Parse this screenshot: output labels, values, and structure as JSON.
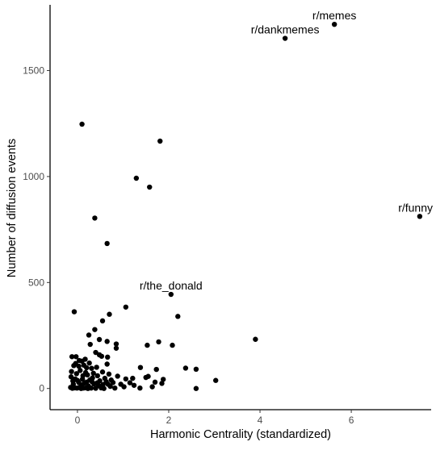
{
  "chart_data": {
    "type": "scatter",
    "title": "",
    "xlabel": "Harmonic Centrality (standardized)",
    "ylabel": "Number of diffusion events",
    "xlim": [
      -0.6,
      7.75
    ],
    "ylim": [
      -100,
      1810
    ],
    "x_ticks": [
      0,
      2,
      4,
      6
    ],
    "y_ticks": [
      0,
      500,
      1000,
      1500
    ],
    "grid": false,
    "point_color": "#000000",
    "points": [
      {
        "x": 5.63,
        "y": 1718
      },
      {
        "x": 4.55,
        "y": 1652
      },
      {
        "x": 7.5,
        "y": 812
      },
      {
        "x": 2.05,
        "y": 444
      },
      {
        "x": 0.1,
        "y": 1247
      },
      {
        "x": 1.81,
        "y": 1167
      },
      {
        "x": 1.29,
        "y": 992
      },
      {
        "x": 1.58,
        "y": 950
      },
      {
        "x": 0.38,
        "y": 804
      },
      {
        "x": 0.65,
        "y": 684
      },
      {
        "x": 1.06,
        "y": 384
      },
      {
        "x": -0.07,
        "y": 362
      },
      {
        "x": 0.7,
        "y": 350
      },
      {
        "x": 2.2,
        "y": 340
      },
      {
        "x": 0.55,
        "y": 319
      },
      {
        "x": 0.38,
        "y": 278
      },
      {
        "x": 0.25,
        "y": 252
      },
      {
        "x": 0.48,
        "y": 231
      },
      {
        "x": 0.65,
        "y": 222
      },
      {
        "x": 1.78,
        "y": 220
      },
      {
        "x": 3.9,
        "y": 232
      },
      {
        "x": 0.85,
        "y": 210
      },
      {
        "x": 0.28,
        "y": 208
      },
      {
        "x": 1.53,
        "y": 204
      },
      {
        "x": 2.08,
        "y": 204
      },
      {
        "x": 0.85,
        "y": 190
      },
      {
        "x": 0.4,
        "y": 170
      },
      {
        "x": 0.48,
        "y": 159
      },
      {
        "x": 0.53,
        "y": 152
      },
      {
        "x": -0.12,
        "y": 150
      },
      {
        "x": -0.03,
        "y": 150
      },
      {
        "x": 0.66,
        "y": 148
      },
      {
        "x": 0.1,
        "y": 129
      },
      {
        "x": 0.26,
        "y": 120
      },
      {
        "x": 0.65,
        "y": 115
      },
      {
        "x": -0.08,
        "y": 108
      },
      {
        "x": 0.03,
        "y": 105
      },
      {
        "x": 0.2,
        "y": 98
      },
      {
        "x": 0.31,
        "y": 95
      },
      {
        "x": 0.42,
        "y": 100
      },
      {
        "x": 1.38,
        "y": 99
      },
      {
        "x": 1.73,
        "y": 90
      },
      {
        "x": 2.37,
        "y": 96
      },
      {
        "x": 2.6,
        "y": 91
      },
      {
        "x": -0.13,
        "y": 80
      },
      {
        "x": 0.18,
        "y": 75
      },
      {
        "x": 0.35,
        "y": 72
      },
      {
        "x": 0.55,
        "y": 78
      },
      {
        "x": 0.69,
        "y": 68
      },
      {
        "x": 0.12,
        "y": 60
      },
      {
        "x": 0.88,
        "y": 58
      },
      {
        "x": 1.06,
        "y": 45
      },
      {
        "x": 1.21,
        "y": 48
      },
      {
        "x": 1.5,
        "y": 52
      },
      {
        "x": 1.55,
        "y": 57
      },
      {
        "x": 1.88,
        "y": 43
      },
      {
        "x": 3.03,
        "y": 38
      },
      {
        "x": -0.05,
        "y": 45
      },
      {
        "x": 0.27,
        "y": 40
      },
      {
        "x": 0.49,
        "y": 36
      },
      {
        "x": 0.63,
        "y": 32
      },
      {
        "x": 0.78,
        "y": 28
      },
      {
        "x": 1.15,
        "y": 27
      },
      {
        "x": 1.7,
        "y": 30
      },
      {
        "x": 0.03,
        "y": 28
      },
      {
        "x": 0.15,
        "y": 25
      },
      {
        "x": 0.36,
        "y": 22
      },
      {
        "x": 0.95,
        "y": 20
      },
      {
        "x": 1.24,
        "y": 15
      },
      {
        "x": 1.85,
        "y": 24
      },
      {
        "x": -0.09,
        "y": 20
      },
      {
        "x": 0.09,
        "y": 16
      },
      {
        "x": 0.24,
        "y": 12
      },
      {
        "x": 0.46,
        "y": 14
      },
      {
        "x": 0.72,
        "y": 10
      },
      {
        "x": 1.02,
        "y": 8
      },
      {
        "x": 1.37,
        "y": 2
      },
      {
        "x": 1.64,
        "y": 8
      },
      {
        "x": 2.6,
        "y": 0
      },
      {
        "x": -0.15,
        "y": 5
      },
      {
        "x": -0.11,
        "y": 1
      },
      {
        "x": -0.06,
        "y": 3
      },
      {
        "x": -0.01,
        "y": 2
      },
      {
        "x": 0.04,
        "y": 4
      },
      {
        "x": 0.08,
        "y": 0
      },
      {
        "x": 0.13,
        "y": 2
      },
      {
        "x": 0.19,
        "y": 3
      },
      {
        "x": 0.23,
        "y": 0
      },
      {
        "x": 0.3,
        "y": 2
      },
      {
        "x": 0.4,
        "y": 1
      },
      {
        "x": 0.52,
        "y": 3
      },
      {
        "x": 0.58,
        "y": 0
      },
      {
        "x": 0.82,
        "y": 2
      },
      {
        "x": -0.14,
        "y": 55
      },
      {
        "x": -0.02,
        "y": 70
      },
      {
        "x": 0.06,
        "y": 85
      },
      {
        "x": 0.14,
        "y": 110
      },
      {
        "x": 0.22,
        "y": 64
      },
      {
        "x": 0.33,
        "y": 50
      },
      {
        "x": 0.44,
        "y": 60
      },
      {
        "x": 0.6,
        "y": 48
      },
      {
        "x": 0.74,
        "y": 40
      },
      {
        "x": -0.1,
        "y": 35
      },
      {
        "x": 0.0,
        "y": 38
      },
      {
        "x": 0.11,
        "y": 44
      },
      {
        "x": 0.2,
        "y": 30
      },
      {
        "x": 0.32,
        "y": 32
      },
      {
        "x": 0.43,
        "y": 26
      },
      {
        "x": 0.56,
        "y": 18
      },
      {
        "x": 0.67,
        "y": 20
      },
      {
        "x": 0.04,
        "y": 132
      },
      {
        "x": -0.04,
        "y": 118
      },
      {
        "x": 0.17,
        "y": 138
      }
    ],
    "annotations": [
      {
        "text": "r/memes",
        "x": 5.63,
        "y": 1718
      },
      {
        "text": "r/dankmemes",
        "x": 4.55,
        "y": 1652
      },
      {
        "text": "r/funny",
        "x": 7.5,
        "y": 812
      },
      {
        "text": "r/the_donald",
        "x": 2.05,
        "y": 444
      }
    ]
  }
}
